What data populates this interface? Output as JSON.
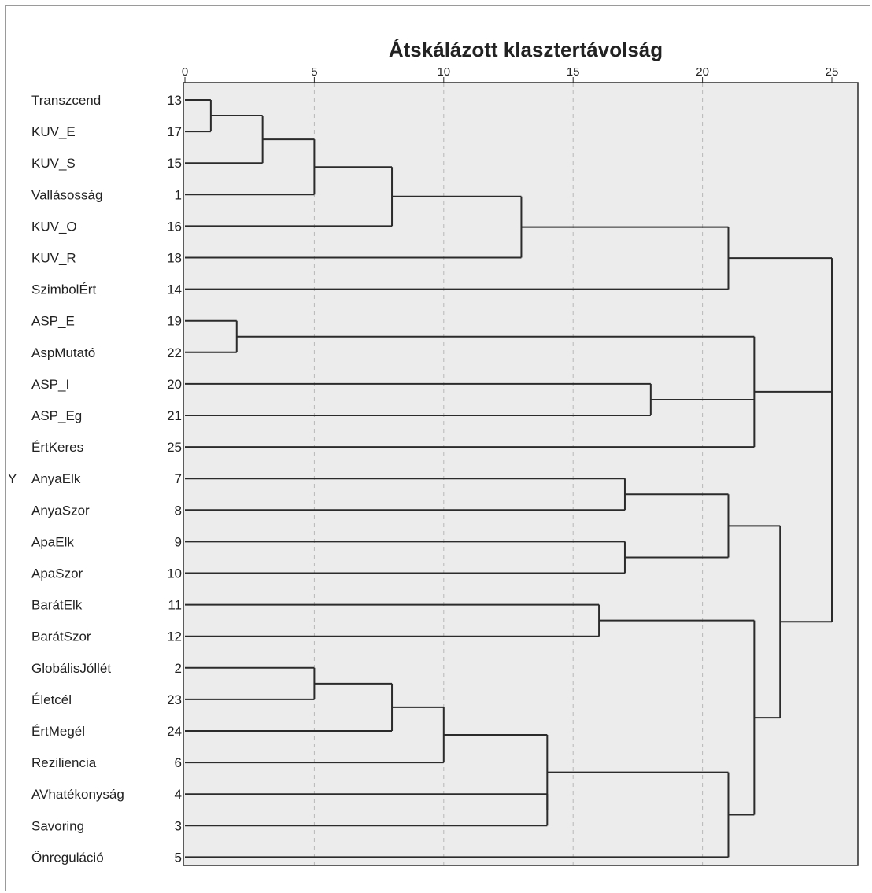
{
  "chart_data": {
    "type": "dendrogram",
    "title": "Átskálázott klasztertávolság",
    "ylabel": "Y",
    "xlim": [
      0,
      25
    ],
    "xticks": [
      0,
      5,
      10,
      15,
      20,
      25
    ],
    "grid": "dashed vertical",
    "colors": {
      "background": "#ececec",
      "line": "#2b2b2b",
      "grid": "#b8b8b8"
    },
    "leaves": [
      {
        "label": "Transzcend",
        "case": "13"
      },
      {
        "label": "KUV_E",
        "case": "17"
      },
      {
        "label": "KUV_S",
        "case": "15"
      },
      {
        "label": "Vallásosság",
        "case": "1"
      },
      {
        "label": "KUV_O",
        "case": "16"
      },
      {
        "label": "KUV_R",
        "case": "18"
      },
      {
        "label": "SzimbolÉrt",
        "case": "14"
      },
      {
        "label": "ASP_E",
        "case": "19"
      },
      {
        "label": "AspMutató",
        "case": "22"
      },
      {
        "label": "ASP_I",
        "case": "20"
      },
      {
        "label": "ASP_Eg",
        "case": "21"
      },
      {
        "label": "ÉrtKeres",
        "case": "25"
      },
      {
        "label": "AnyaElk",
        "case": "7"
      },
      {
        "label": "AnyaSzor",
        "case": "8"
      },
      {
        "label": "ApaElk",
        "case": "9"
      },
      {
        "label": "ApaSzor",
        "case": "10"
      },
      {
        "label": "BarátElk",
        "case": "11"
      },
      {
        "label": "BarátSzor",
        "case": "12"
      },
      {
        "label": "GlobálisJóllét",
        "case": "2"
      },
      {
        "label": "Életcél",
        "case": "23"
      },
      {
        "label": "ÉrtMegél",
        "case": "24"
      },
      {
        "label": "Reziliencia",
        "case": "6"
      },
      {
        "label": "AVhatékonyság",
        "case": "4"
      },
      {
        "label": "Savoring",
        "case": "3"
      },
      {
        "label": "Önreguláció",
        "case": "5"
      }
    ],
    "merges": [
      {
        "children": [
          "L0",
          "L1"
        ],
        "distance": 1
      },
      {
        "children": [
          "M0",
          "L2"
        ],
        "distance": 3
      },
      {
        "children": [
          "M1",
          "L3"
        ],
        "distance": 5
      },
      {
        "children": [
          "M2",
          "L4"
        ],
        "distance": 8
      },
      {
        "children": [
          "M3",
          "L5"
        ],
        "distance": 13
      },
      {
        "children": [
          "M4",
          "L6"
        ],
        "distance": 21
      },
      {
        "children": [
          "L7",
          "L8"
        ],
        "distance": 2
      },
      {
        "children": [
          "L9",
          "L10"
        ],
        "distance": 18
      },
      {
        "children": [
          "M6",
          "M7",
          "L11"
        ],
        "distance": 22
      },
      {
        "children": [
          "M5",
          "M8"
        ],
        "distance": 25
      },
      {
        "children": [
          "L12",
          "L13"
        ],
        "distance": 17
      },
      {
        "children": [
          "L14",
          "L15"
        ],
        "distance": 17
      },
      {
        "children": [
          "M10",
          "M11"
        ],
        "distance": 21
      },
      {
        "children": [
          "L16",
          "L17"
        ],
        "distance": 16
      },
      {
        "children": [
          "L18",
          "L19"
        ],
        "distance": 5
      },
      {
        "children": [
          "M14",
          "L20"
        ],
        "distance": 8
      },
      {
        "children": [
          "M15",
          "L21"
        ],
        "distance": 10
      },
      {
        "children": [
          "L22",
          "L23"
        ],
        "distance": 14
      },
      {
        "children": [
          "M16",
          "M17"
        ],
        "distance": 14
      },
      {
        "children": [
          "M18",
          "L24"
        ],
        "distance": 21
      },
      {
        "children": [
          "M13",
          "M19"
        ],
        "distance": 22
      },
      {
        "children": [
          "M12",
          "M20"
        ],
        "distance": 23
      },
      {
        "children": [
          "M9",
          "M21"
        ],
        "distance": 25
      }
    ]
  }
}
